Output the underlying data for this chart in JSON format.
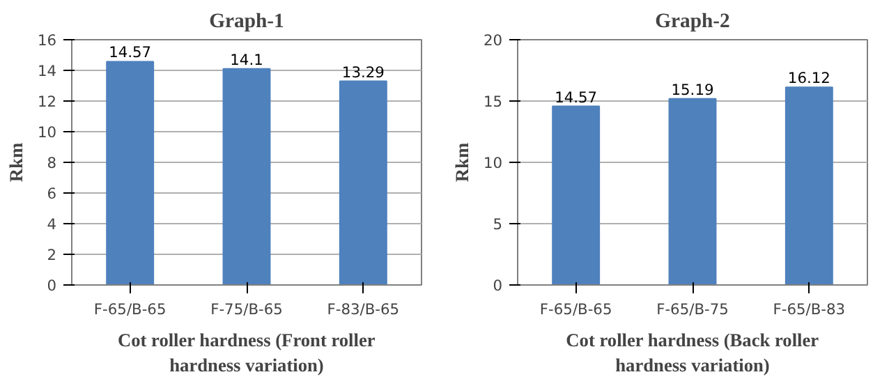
{
  "chart_data": [
    {
      "type": "bar",
      "title": "Graph-1",
      "xlabel": "Cot roller hardness (Front roller hardness variation)",
      "ylabel": "Rkm",
      "categories": [
        "F-65/B-65",
        "F-75/B-65",
        "F-83/B-65"
      ],
      "values": [
        14.57,
        14.1,
        13.29
      ],
      "color": "#4f81bd",
      "ylim": [
        0,
        16
      ],
      "yticks": [
        0,
        2,
        4,
        6,
        8,
        10,
        12,
        14,
        16
      ],
      "grid": "y",
      "data_labels": true
    },
    {
      "type": "bar",
      "title": "Graph-2",
      "xlabel": "Cot roller hardness (Back roller hardness variation)",
      "ylabel": "Rkm",
      "categories": [
        "F-65/B-65",
        "F-65/B-75",
        "F-65/B-83"
      ],
      "values": [
        14.57,
        15.19,
        16.12
      ],
      "color": "#4f81bd",
      "ylim": [
        0,
        20
      ],
      "yticks": [
        0,
        5,
        10,
        15,
        20
      ],
      "grid": "y",
      "data_labels": true
    }
  ]
}
